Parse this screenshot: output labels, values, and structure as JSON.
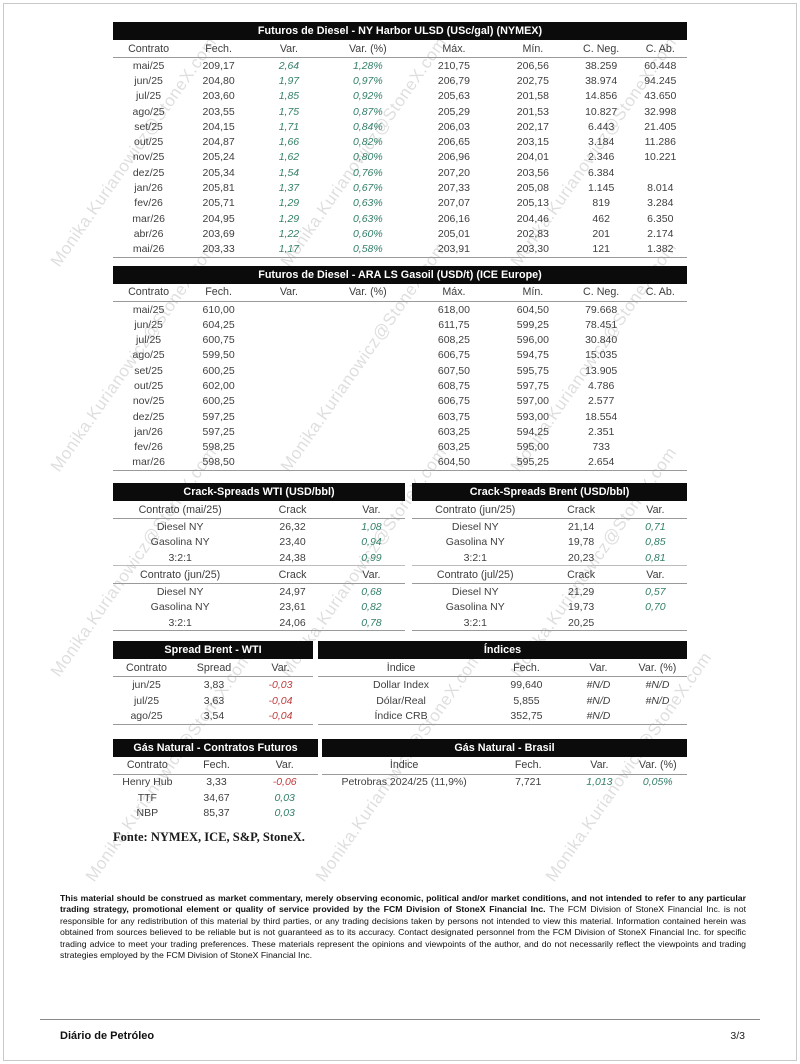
{
  "page": {
    "watermark": "Monika.Kurianowicz@StoneX.com",
    "fonte": "Fonte: NYMEX, ICE, S&P, StoneX.",
    "footer_title": "Diário de Petróleo",
    "footer_page": "3/3"
  },
  "colors": {
    "positive": "#35806b",
    "negative": "#c23b3d",
    "title_bar": "#0b0b0b"
  },
  "tables": {
    "diesel": {
      "title": "Futuros de Diesel - NY Harbor ULSD (USc/gal) (NYMEX)",
      "headers": [
        "Contrato",
        "Fech.",
        "Var.",
        "Var. (%)",
        "Máx.",
        "Mín.",
        "C. Neg.",
        "C. Ab."
      ],
      "var_cols": [
        2,
        3
      ],
      "rows": [
        [
          "mai/25",
          "209,17",
          "2,64",
          "1,28%",
          "210,75",
          "206,56",
          "38.259",
          "60.448"
        ],
        [
          "jun/25",
          "204,80",
          "1,97",
          "0,97%",
          "206,79",
          "202,75",
          "38.974",
          "94.245"
        ],
        [
          "jul/25",
          "203,60",
          "1,85",
          "0,92%",
          "205,63",
          "201,58",
          "14.856",
          "43.650"
        ],
        [
          "ago/25",
          "203,55",
          "1,75",
          "0,87%",
          "205,29",
          "201,53",
          "10.827",
          "32.998"
        ],
        [
          "set/25",
          "204,15",
          "1,71",
          "0,84%",
          "206,03",
          "202,17",
          "6.443",
          "21.405"
        ],
        [
          "out/25",
          "204,87",
          "1,66",
          "0,82%",
          "206,65",
          "203,15",
          "3.184",
          "11.286"
        ],
        [
          "nov/25",
          "205,24",
          "1,62",
          "0,80%",
          "206,96",
          "204,01",
          "2.346",
          "10.221"
        ],
        [
          "dez/25",
          "205,34",
          "1,54",
          "0,76%",
          "207,20",
          "203,56",
          "6.384",
          ""
        ],
        [
          "jan/26",
          "205,81",
          "1,37",
          "0,67%",
          "207,33",
          "205,08",
          "1.145",
          "8.014"
        ],
        [
          "fev/26",
          "205,71",
          "1,29",
          "0,63%",
          "207,07",
          "205,13",
          "819",
          "3.284"
        ],
        [
          "mar/26",
          "204,95",
          "1,29",
          "0,63%",
          "206,16",
          "204,46",
          "462",
          "6.350"
        ],
        [
          "abr/26",
          "203,69",
          "1,22",
          "0,60%",
          "205,01",
          "202,83",
          "201",
          "2.174"
        ],
        [
          "mai/26",
          "203,33",
          "1,17",
          "0,58%",
          "203,91",
          "203,30",
          "121",
          "1.382"
        ]
      ]
    },
    "gasoil": {
      "title": "Futuros de Diesel - ARA LS Gasoil (USD/t) (ICE Europe)",
      "headers": [
        "Contrato",
        "Fech.",
        "Var.",
        "Var. (%)",
        "Máx.",
        "Mín.",
        "C. Neg.",
        "C. Ab."
      ],
      "var_cols": [
        2,
        3
      ],
      "rows": [
        [
          "mai/25",
          "610,00",
          "",
          "",
          "618,00",
          "604,50",
          "79.668",
          ""
        ],
        [
          "jun/25",
          "604,25",
          "",
          "",
          "611,75",
          "599,25",
          "78.451",
          ""
        ],
        [
          "jul/25",
          "600,75",
          "",
          "",
          "608,25",
          "596,00",
          "30.840",
          ""
        ],
        [
          "ago/25",
          "599,50",
          "",
          "",
          "606,75",
          "594,75",
          "15.035",
          ""
        ],
        [
          "set/25",
          "600,25",
          "",
          "",
          "607,50",
          "595,75",
          "13.905",
          ""
        ],
        [
          "out/25",
          "602,00",
          "",
          "",
          "608,75",
          "597,75",
          "4.786",
          ""
        ],
        [
          "nov/25",
          "600,25",
          "",
          "",
          "606,75",
          "597,00",
          "2.577",
          ""
        ],
        [
          "dez/25",
          "597,25",
          "",
          "",
          "603,75",
          "593,00",
          "18.554",
          ""
        ],
        [
          "jan/26",
          "597,25",
          "",
          "",
          "603,25",
          "594,25",
          "2.351",
          ""
        ],
        [
          "fev/26",
          "598,25",
          "",
          "",
          "603,25",
          "595,00",
          "733",
          ""
        ],
        [
          "mar/26",
          "598,50",
          "",
          "",
          "604,50",
          "595,25",
          "2.654",
          ""
        ]
      ]
    },
    "crack_wti": {
      "title": "Crack-Spreads WTI (USD/bbl)",
      "var_cols": [
        2
      ],
      "sections": [
        {
          "headers": [
            "Contrato (mai/25)",
            "Crack",
            "Var."
          ],
          "rows": [
            [
              "Diesel NY",
              "26,32",
              "1,08"
            ],
            [
              "Gasolina NY",
              "23,40",
              "0,94"
            ],
            [
              "3:2:1",
              "24,38",
              "0,99"
            ]
          ]
        },
        {
          "headers": [
            "Contrato (jun/25)",
            "Crack",
            "Var."
          ],
          "rows": [
            [
              "Diesel NY",
              "24,97",
              "0,68"
            ],
            [
              "Gasolina NY",
              "23,61",
              "0,82"
            ],
            [
              "3:2:1",
              "24,06",
              "0,78"
            ]
          ]
        }
      ]
    },
    "crack_brent": {
      "title": "Crack-Spreads Brent (USD/bbl)",
      "var_cols": [
        2
      ],
      "sections": [
        {
          "headers": [
            "Contrato (jun/25)",
            "Crack",
            "Var."
          ],
          "rows": [
            [
              "Diesel NY",
              "21,14",
              "0,71"
            ],
            [
              "Gasolina NY",
              "19,78",
              "0,85"
            ],
            [
              "3:2:1",
              "20,23",
              "0,81"
            ]
          ]
        },
        {
          "headers": [
            "Contrato (jul/25)",
            "Crack",
            "Var."
          ],
          "rows": [
            [
              "Diesel NY",
              "21,29",
              "0,57"
            ],
            [
              "Gasolina NY",
              "19,73",
              "0,70"
            ],
            [
              "3:2:1",
              "20,25",
              ""
            ]
          ]
        }
      ]
    },
    "spread": {
      "title": "Spread Brent - WTI",
      "headers": [
        "Contrato",
        "Spread",
        "Var."
      ],
      "var_cols": [
        2
      ],
      "rows": [
        [
          "jun/25",
          "3,83",
          "-0,03"
        ],
        [
          "jul/25",
          "3,63",
          "-0,04"
        ],
        [
          "ago/25",
          "3,54",
          "-0,04"
        ]
      ]
    },
    "indices": {
      "title": "Índices",
      "headers": [
        "Índice",
        "Fech.",
        "Var.",
        "Var. (%)"
      ],
      "var_cols": [
        2,
        3
      ],
      "rows": [
        [
          "Dollar Index",
          "99,640",
          "#N/D",
          "#N/D"
        ],
        [
          "Dólar/Real",
          "5,855",
          "#N/D",
          "#N/D"
        ],
        [
          "Índice CRB",
          "352,75",
          "#N/D",
          ""
        ]
      ]
    },
    "gas_futures": {
      "title": "Gás Natural - Contratos Futuros",
      "headers": [
        "Contrato",
        "Fech.",
        "Var."
      ],
      "var_cols": [
        2
      ],
      "rows": [
        [
          "Henry Hub",
          "3,33",
          "-0,06"
        ],
        [
          "TTF",
          "34,67",
          "0,03"
        ],
        [
          "NBP",
          "85,37",
          "0,03"
        ]
      ]
    },
    "gas_brasil": {
      "title": "Gás Natural - Brasil",
      "headers": [
        "Índice",
        "Fech.",
        "Var.",
        "Var. (%)"
      ],
      "var_cols": [
        2,
        3
      ],
      "rows": [
        [
          "Petrobras 2024/25 (11,9%)",
          "7,721",
          "1,013",
          "0,05%"
        ]
      ]
    }
  },
  "disclaimer": {
    "bold": "This material should be construed as market commentary, merely observing economic, political and/or market conditions, and not intended to refer to any particular trading strategy, promotional element or quality of service provided by the FCM Division of StoneX Financial Inc.",
    "rest": " The FCM Division of StoneX Financial Inc. is not responsible for any redistribution of this material by third parties, or any trading decisions taken by persons not intended to view this material. Information contained herein was obtained from sources believed to be reliable but is not guaranteed as to its accuracy. Contact designated personnel from the FCM Division of StoneX Financial Inc. for specific trading advice to meet your trading preferences. These materials represent the opinions and viewpoints of the author, and do not necessarily reflect the viewpoints and trading strategies employed by the FCM Division of StoneX Financial Inc."
  }
}
